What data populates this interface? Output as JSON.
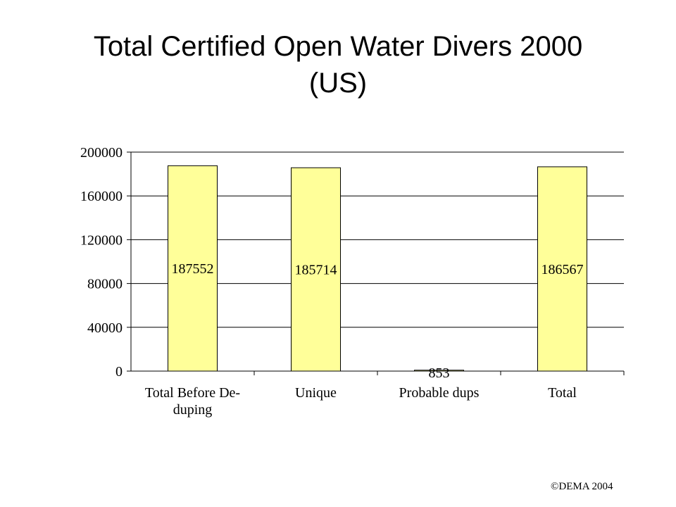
{
  "slide": {
    "title_line1": "Total Certified Open Water Divers 2000",
    "title_line2": "(US)",
    "footer": "©DEMA 2004"
  },
  "chart_data": {
    "type": "bar",
    "categories": [
      [
        "Total Before De-",
        "duping"
      ],
      [
        "Unique"
      ],
      [
        "Probable dups"
      ],
      [
        "Total"
      ]
    ],
    "values": [
      187552,
      185714,
      853,
      186567
    ],
    "data_labels": [
      "187552",
      "185714",
      "853",
      "186567"
    ],
    "ylim": [
      0,
      200000
    ],
    "yticks": [
      0,
      40000,
      80000,
      120000,
      160000,
      200000
    ],
    "ytick_labels": [
      "0",
      "40000",
      "80000",
      "120000",
      "160000",
      "200000"
    ],
    "grid": true,
    "legend": "none",
    "colors": {
      "bar_fill": "#FFFF99",
      "bar_stroke": "#000000",
      "grid": "#000000"
    }
  }
}
